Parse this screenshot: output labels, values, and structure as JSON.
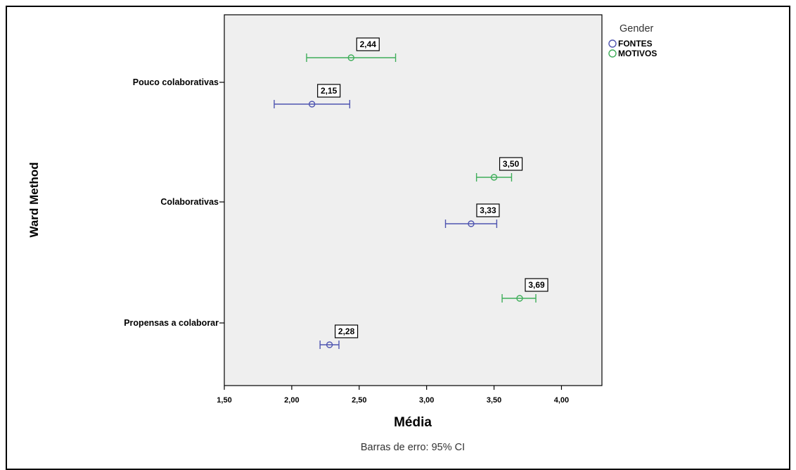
{
  "chart_data": {
    "type": "scatter",
    "subtype": "horizontal error bars (mean with 95% CI)",
    "categories": [
      "Pouco colaborativas",
      "Colaborativas",
      "Propensas a colaborar"
    ],
    "series": [
      {
        "name": "FONTES",
        "color": "#4f55b0",
        "means": [
          2.15,
          3.33,
          2.28
        ],
        "ci_low": [
          1.87,
          3.14,
          2.21
        ],
        "ci_high": [
          2.43,
          3.52,
          2.35
        ],
        "labels": [
          "2,15",
          "3,33",
          "2,28"
        ]
      },
      {
        "name": "MOTIVOS",
        "color": "#3fae5a",
        "means": [
          2.44,
          3.5,
          3.69
        ],
        "ci_low": [
          2.11,
          3.37,
          3.56
        ],
        "ci_high": [
          2.77,
          3.63,
          3.81
        ],
        "labels": [
          "2,44",
          "3,50",
          "3,69"
        ]
      }
    ],
    "xlabel": "Média",
    "ylabel": "Ward Method",
    "xlim": [
      1.5,
      4.3
    ],
    "xticks": [
      1.5,
      2.0,
      2.5,
      3.0,
      3.5,
      4.0
    ],
    "xtick_labels": [
      "1,50",
      "2,00",
      "2,50",
      "3,00",
      "3,50",
      "4,00"
    ],
    "legend_title": "Gender",
    "legend_position": "top-right, outside plot",
    "footnote": "Barras de erro: 95% CI",
    "plot_background": "#efefef",
    "grid": false
  }
}
